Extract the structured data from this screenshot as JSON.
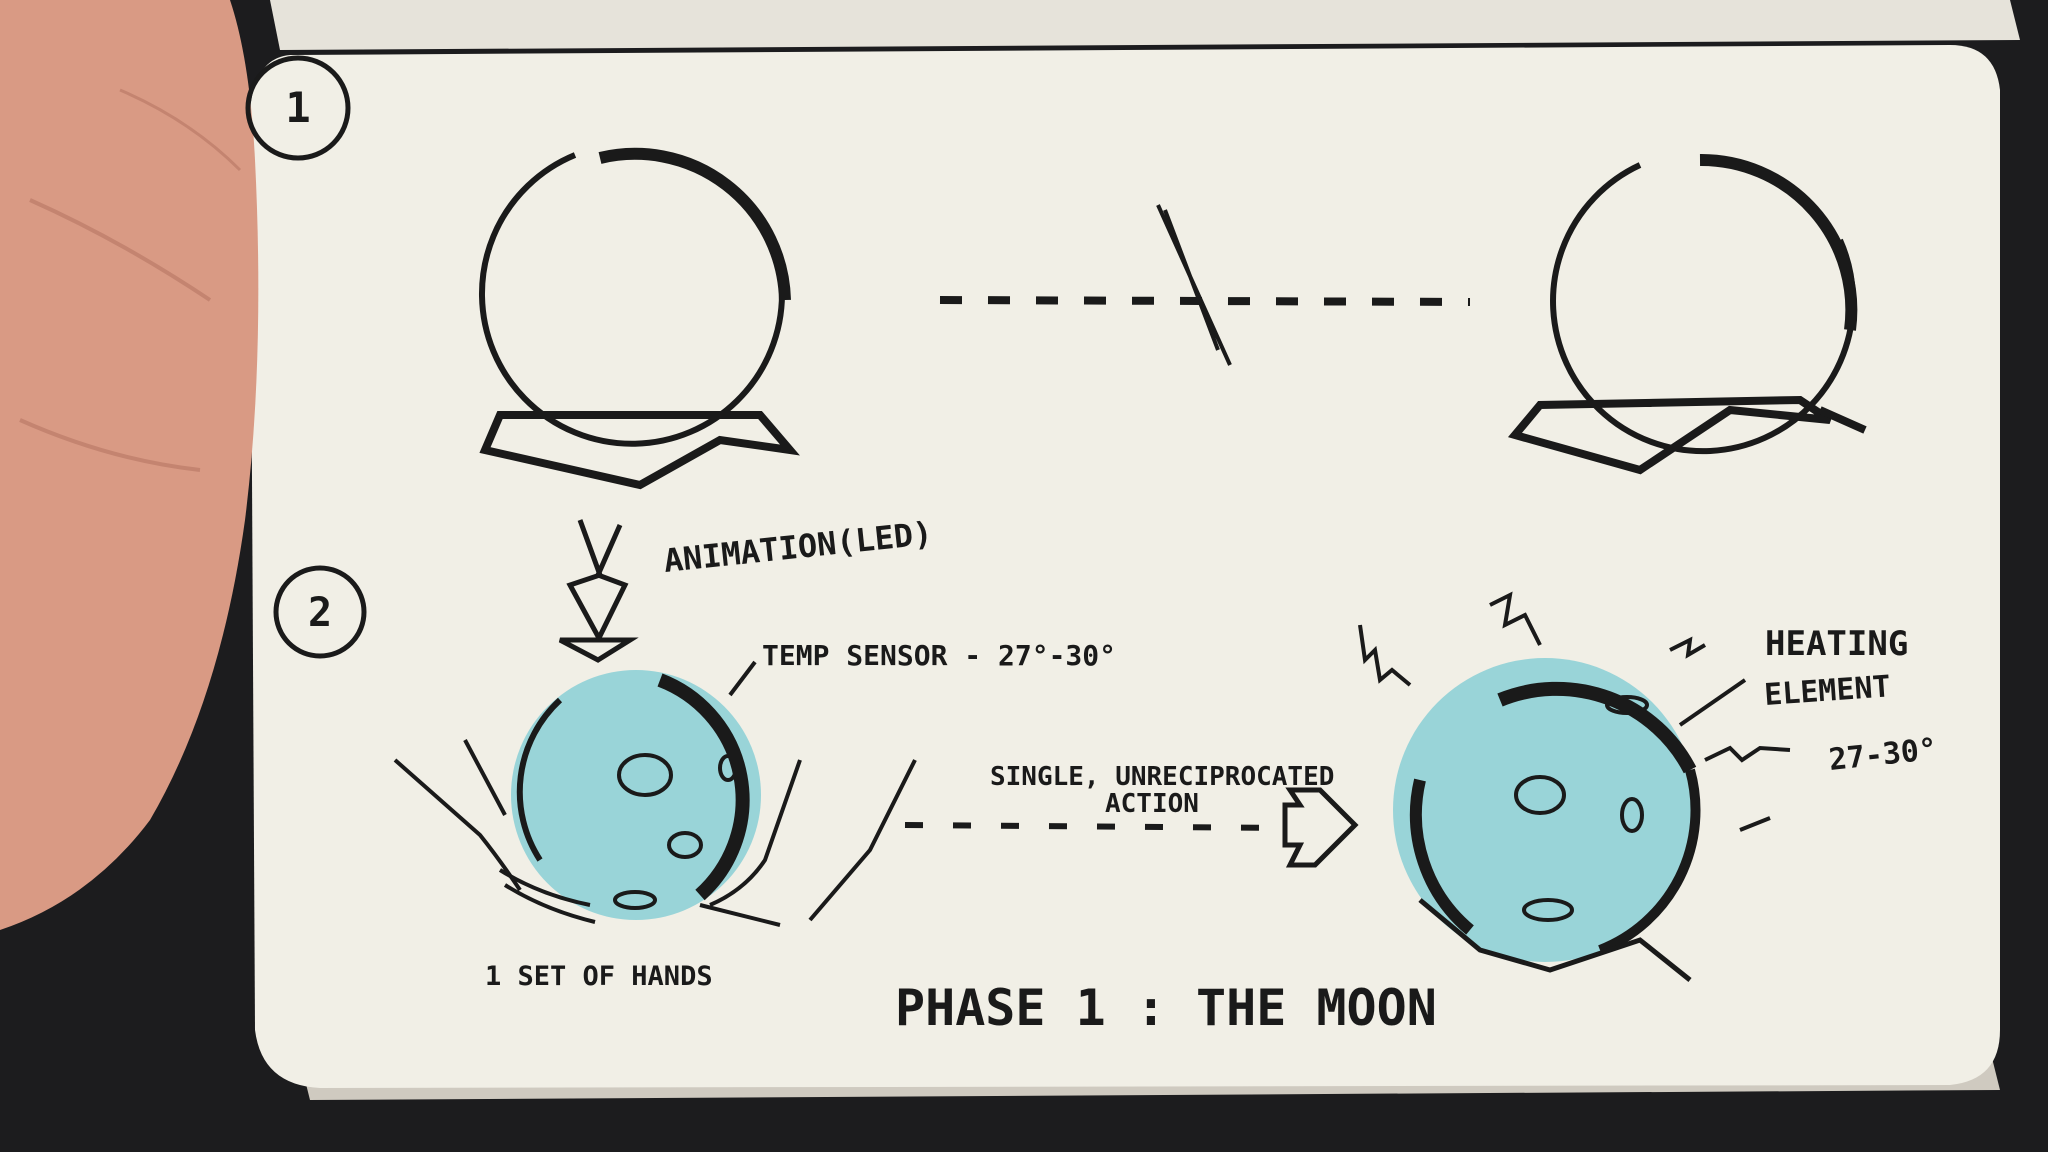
{
  "photo": {
    "subject": "sketchbook-page-held-in-hand",
    "colors": {
      "background": "#1c1c1e",
      "paper": "#f1efe6",
      "paper_shadow": "#d9d6cc",
      "ink": "#1a1a1a",
      "watercolor": "#8fd0d6",
      "skin": "#d99a84"
    }
  },
  "sketch": {
    "step_1": "1",
    "step_2": "2",
    "animation_label": "ANIMATION(LED)",
    "temp_sensor_label": "TEMP SENSOR - 27°-30°",
    "action_label_line1": "SINGLE, UNRECIPROCATED",
    "action_label_line2": "ACTION",
    "heating_label_line1": "HEATING",
    "heating_label_line2": "ELEMENT",
    "heating_range": "27-30°",
    "hands_label": "1 SET OF HANDS",
    "caption": "PHASE 1 : THE MOON"
  }
}
